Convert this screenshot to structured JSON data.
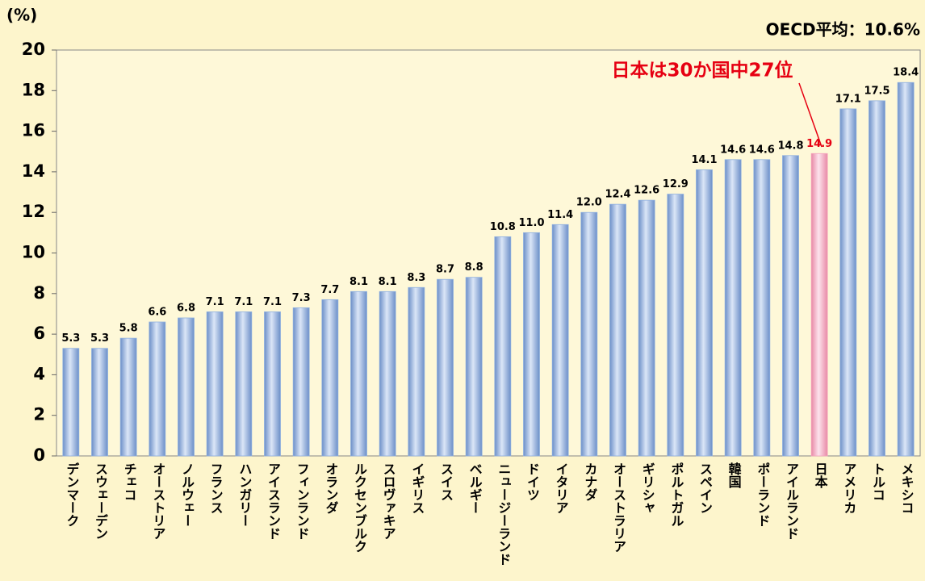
{
  "chart_data": {
    "type": "bar",
    "y_unit_label": "(%)",
    "annotations": [
      "OECD平均：10.6%",
      "日本は30か国中27位"
    ],
    "annotation_color": "#e60012",
    "categories": [
      "デンマーク",
      "スウェーデン",
      "チェコ",
      "オーストリア",
      "ノルウェー",
      "フランス",
      "ハンガリー",
      "アイスランド",
      "フィンランド",
      "オランダ",
      "ルクセンブルク",
      "スロヴァキア",
      "イギリス",
      "スイス",
      "ベルギー",
      "ニュージーランド",
      "ドイツ",
      "イタリア",
      "カナダ",
      "オーストラリア",
      "ギリシャ",
      "ポルトガル",
      "スペイン",
      "韓国",
      "ポーランド",
      "アイルランド",
      "日本",
      "アメリカ",
      "トルコ",
      "メキシコ"
    ],
    "values": [
      5.3,
      5.3,
      5.8,
      6.6,
      6.8,
      7.1,
      7.1,
      7.1,
      7.3,
      7.7,
      8.1,
      8.1,
      8.3,
      8.7,
      8.8,
      10.8,
      11.0,
      11.4,
      12.0,
      12.4,
      12.6,
      12.9,
      14.1,
      14.6,
      14.6,
      14.8,
      14.9,
      17.1,
      17.5,
      18.4
    ],
    "value_labels": [
      "5.3",
      "5.3",
      "5.8",
      "6.6",
      "6.8",
      "7.1",
      "7.1",
      "7.1",
      "7.3",
      "7.7",
      "8.1",
      "8.1",
      "8.3",
      "8.7",
      "8.8",
      "10.8",
      "11.0",
      "11.4",
      "12.0",
      "12.4",
      "12.6",
      "12.9",
      "14.1",
      "14.6",
      "14.6",
      "14.8",
      "14.9",
      "17.1",
      "17.5",
      "18.4"
    ],
    "colors": [
      "#8fb0e0",
      "#8fb0e0",
      "#8fb0e0",
      "#8fb0e0",
      "#8fb0e0",
      "#8fb0e0",
      "#8fb0e0",
      "#8fb0e0",
      "#8fb0e0",
      "#8fb0e0",
      "#8fb0e0",
      "#8fb0e0",
      "#8fb0e0",
      "#8fb0e0",
      "#8fb0e0",
      "#8fb0e0",
      "#8fb0e0",
      "#8fb0e0",
      "#8fb0e0",
      "#8fb0e0",
      "#8fb0e0",
      "#8fb0e0",
      "#8fb0e0",
      "#8fb0e0",
      "#8fb0e0",
      "#8fb0e0",
      "#f4a3bd",
      "#8fb0e0",
      "#8fb0e0",
      "#8fb0e0"
    ],
    "ylim": [
      0,
      20
    ],
    "yticks": [
      0,
      2,
      4,
      6,
      8,
      10,
      12,
      14,
      16,
      18,
      20
    ]
  }
}
